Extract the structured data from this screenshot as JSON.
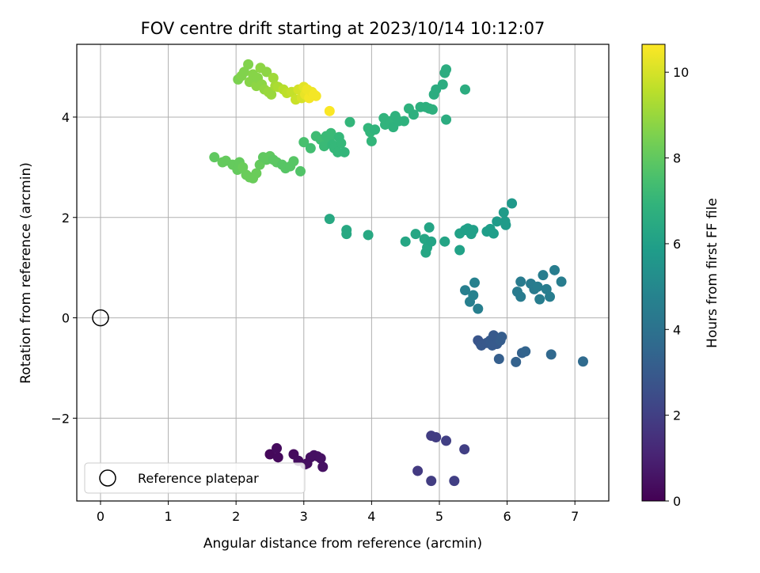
{
  "chart_data": {
    "type": "scatter",
    "title": "FOV centre drift starting at 2023/10/14 10:12:07",
    "xlabel": "Angular distance from reference (arcmin)",
    "ylabel": "Rotation from reference (arcmin)",
    "xlim": [
      -0.35,
      7.5
    ],
    "ylim": [
      -3.65,
      5.45
    ],
    "xticks": [
      0,
      1,
      2,
      3,
      4,
      5,
      6,
      7
    ],
    "yticks": [
      -2,
      0,
      2,
      4
    ],
    "xtick_labels": [
      "0",
      "1",
      "2",
      "3",
      "4",
      "5",
      "6",
      "7"
    ],
    "ytick_labels": [
      "−2",
      "0",
      "2",
      "4"
    ],
    "grid": true,
    "colormap": "viridis",
    "colorbar": {
      "label": "Hours from first FF file",
      "range": [
        0,
        10.65
      ],
      "ticks": [
        0,
        2,
        4,
        6,
        8,
        10
      ],
      "tick_labels": [
        "0",
        "2",
        "4",
        "6",
        "8",
        "10"
      ]
    },
    "legend": {
      "placement": "lower-left",
      "entries": [
        "Reference platepar"
      ]
    },
    "reference_point": {
      "x": 0,
      "y": 0
    },
    "points": [
      [
        2.5,
        -2.72,
        0.2
      ],
      [
        2.6,
        -2.6,
        0.3
      ],
      [
        2.62,
        -2.78,
        0.25
      ],
      [
        2.85,
        -2.72,
        0.3
      ],
      [
        2.92,
        -2.85,
        0.35
      ],
      [
        3.02,
        -2.92,
        0.4
      ],
      [
        3.1,
        -2.78,
        0.4
      ],
      [
        3.15,
        -2.74,
        0.45
      ],
      [
        3.2,
        -2.76,
        0.45
      ],
      [
        3.25,
        -2.8,
        0.5
      ],
      [
        3.28,
        -2.97,
        0.5
      ],
      [
        3.05,
        -2.9,
        0.4
      ],
      [
        4.68,
        -3.05,
        1.8
      ],
      [
        4.88,
        -2.35,
        1.9
      ],
      [
        4.95,
        -2.38,
        1.9
      ],
      [
        4.88,
        -3.25,
        1.9
      ],
      [
        5.1,
        -2.45,
        2.0
      ],
      [
        5.22,
        -3.25,
        2.0
      ],
      [
        5.37,
        -2.62,
        2.0
      ],
      [
        5.57,
        -0.45,
        2.8
      ],
      [
        5.6,
        -0.5,
        2.8
      ],
      [
        5.62,
        -0.55,
        2.9
      ],
      [
        5.7,
        -0.5,
        2.9
      ],
      [
        5.75,
        -0.45,
        3.0
      ],
      [
        5.78,
        -0.55,
        3.0
      ],
      [
        5.8,
        -0.35,
        3.0
      ],
      [
        5.85,
        -0.52,
        3.0
      ],
      [
        5.9,
        -0.45,
        3.1
      ],
      [
        5.92,
        -0.38,
        3.1
      ],
      [
        5.88,
        -0.82,
        3.2
      ],
      [
        6.13,
        -0.88,
        3.3
      ],
      [
        6.22,
        -0.7,
        3.3
      ],
      [
        6.27,
        -0.67,
        3.4
      ],
      [
        6.65,
        -0.73,
        3.6
      ],
      [
        7.12,
        -0.87,
        3.7
      ],
      [
        5.38,
        0.55,
        4.6
      ],
      [
        5.45,
        0.32,
        4.6
      ],
      [
        5.5,
        0.45,
        4.7
      ],
      [
        5.52,
        0.7,
        4.7
      ],
      [
        5.57,
        0.18,
        4.6
      ],
      [
        6.15,
        0.52,
        4.4
      ],
      [
        6.2,
        0.72,
        4.4
      ],
      [
        6.2,
        0.42,
        4.4
      ],
      [
        6.35,
        0.68,
        4.4
      ],
      [
        6.4,
        0.57,
        4.4
      ],
      [
        6.45,
        0.62,
        4.5
      ],
      [
        6.48,
        0.37,
        4.5
      ],
      [
        6.53,
        0.85,
        4.5
      ],
      [
        6.58,
        0.57,
        4.5
      ],
      [
        6.63,
        0.42,
        4.5
      ],
      [
        6.7,
        0.95,
        4.5
      ],
      [
        6.8,
        0.72,
        4.5
      ],
      [
        3.38,
        1.97,
        6.4
      ],
      [
        3.63,
        1.75,
        6.4
      ],
      [
        3.63,
        1.67,
        6.4
      ],
      [
        3.95,
        1.65,
        6.4
      ],
      [
        4.5,
        1.52,
        6.3
      ],
      [
        4.65,
        1.67,
        6.3
      ],
      [
        4.78,
        1.57,
        6.3
      ],
      [
        4.82,
        1.4,
        6.3
      ],
      [
        4.8,
        1.3,
        6.3
      ],
      [
        4.85,
        1.8,
        6.2
      ],
      [
        4.88,
        1.52,
        6.2
      ],
      [
        5.08,
        1.52,
        6.2
      ],
      [
        5.3,
        1.35,
        6.1
      ],
      [
        5.3,
        1.68,
        6.1
      ],
      [
        5.38,
        1.75,
        6.0
      ],
      [
        5.42,
        1.78,
        6.0
      ],
      [
        5.47,
        1.67,
        6.0
      ],
      [
        5.5,
        1.75,
        6.0
      ],
      [
        5.7,
        1.72,
        5.9
      ],
      [
        5.75,
        1.77,
        5.9
      ],
      [
        5.8,
        1.68,
        5.9
      ],
      [
        5.85,
        1.92,
        5.8
      ],
      [
        5.95,
        2.1,
        5.8
      ],
      [
        5.97,
        1.92,
        5.8
      ],
      [
        5.98,
        1.85,
        5.8
      ],
      [
        6.07,
        2.28,
        5.7
      ],
      [
        1.68,
        3.2,
        8.0
      ],
      [
        1.8,
        3.1,
        8.1
      ],
      [
        1.85,
        3.13,
        8.1
      ],
      [
        1.95,
        3.05,
        8.1
      ],
      [
        2.02,
        2.95,
        8.1
      ],
      [
        2.05,
        3.1,
        8.1
      ],
      [
        2.1,
        3.0,
        8.2
      ],
      [
        2.15,
        2.85,
        8.2
      ],
      [
        2.2,
        2.8,
        8.2
      ],
      [
        2.25,
        2.78,
        8.2
      ],
      [
        2.3,
        2.88,
        8.2
      ],
      [
        2.35,
        3.05,
        8.1
      ],
      [
        2.4,
        3.2,
        8.0
      ],
      [
        2.45,
        3.15,
        8.0
      ],
      [
        2.5,
        3.22,
        8.0
      ],
      [
        2.55,
        3.15,
        7.9
      ],
      [
        2.6,
        3.1,
        7.9
      ],
      [
        2.68,
        3.05,
        7.8
      ],
      [
        2.73,
        2.98,
        7.8
      ],
      [
        2.8,
        3.02,
        7.8
      ],
      [
        2.85,
        3.12,
        7.8
      ],
      [
        2.95,
        2.92,
        7.7
      ],
      [
        3.0,
        3.5,
        7.5
      ],
      [
        3.1,
        3.38,
        7.4
      ],
      [
        3.18,
        3.62,
        7.3
      ],
      [
        3.25,
        3.55,
        7.3
      ],
      [
        3.3,
        3.42,
        7.2
      ],
      [
        3.33,
        3.62,
        7.2
      ],
      [
        3.38,
        3.55,
        7.2
      ],
      [
        3.4,
        3.68,
        7.2
      ],
      [
        3.42,
        3.45,
        7.1
      ],
      [
        3.45,
        3.38,
        7.1
      ],
      [
        3.5,
        3.3,
        7.1
      ],
      [
        3.52,
        3.6,
        7.1
      ],
      [
        3.55,
        3.48,
        7.1
      ],
      [
        3.6,
        3.3,
        7.0
      ],
      [
        3.68,
        3.9,
        7.0
      ],
      [
        3.95,
        3.78,
        7.0
      ],
      [
        3.98,
        3.7,
        7.0
      ],
      [
        4.0,
        3.52,
        7.0
      ],
      [
        4.05,
        3.75,
        6.9
      ],
      [
        4.18,
        3.98,
        6.9
      ],
      [
        4.2,
        3.85,
        6.9
      ],
      [
        4.28,
        3.92,
        6.9
      ],
      [
        4.32,
        3.8,
        6.8
      ],
      [
        4.35,
        4.02,
        6.8
      ],
      [
        4.4,
        3.92,
        6.8
      ],
      [
        4.48,
        3.92,
        6.8
      ],
      [
        4.55,
        4.17,
        6.8
      ],
      [
        4.62,
        4.05,
        6.7
      ],
      [
        4.72,
        4.2,
        6.7
      ],
      [
        4.8,
        4.2,
        6.7
      ],
      [
        4.85,
        4.17,
        6.7
      ],
      [
        4.9,
        4.15,
        6.7
      ],
      [
        4.92,
        4.45,
        6.6
      ],
      [
        4.95,
        4.55,
        6.6
      ],
      [
        5.05,
        4.65,
        6.6
      ],
      [
        5.08,
        4.88,
        6.6
      ],
      [
        5.1,
        4.95,
        6.6
      ],
      [
        5.1,
        3.95,
        6.6
      ],
      [
        5.38,
        4.55,
        6.6
      ],
      [
        2.03,
        4.75,
        8.5
      ],
      [
        2.08,
        4.82,
        8.6
      ],
      [
        2.12,
        4.9,
        8.6
      ],
      [
        2.18,
        5.05,
        8.6
      ],
      [
        2.2,
        4.7,
        8.7
      ],
      [
        2.25,
        4.85,
        8.7
      ],
      [
        2.3,
        4.62,
        8.8
      ],
      [
        2.32,
        4.78,
        8.7
      ],
      [
        2.36,
        4.98,
        8.8
      ],
      [
        2.38,
        4.65,
        8.8
      ],
      [
        2.42,
        4.55,
        8.9
      ],
      [
        2.45,
        4.9,
        8.8
      ],
      [
        2.48,
        4.5,
        9.0
      ],
      [
        2.52,
        4.45,
        9.0
      ],
      [
        2.55,
        4.78,
        9.1
      ],
      [
        2.58,
        4.62,
        9.2
      ],
      [
        2.62,
        4.6,
        9.3
      ],
      [
        2.7,
        4.55,
        9.5
      ],
      [
        2.75,
        4.48,
        9.6
      ],
      [
        2.82,
        4.5,
        9.7
      ],
      [
        2.88,
        4.35,
        9.8
      ],
      [
        2.92,
        4.55,
        10.0
      ],
      [
        2.97,
        4.38,
        10.0
      ],
      [
        3.0,
        4.6,
        10.2
      ],
      [
        3.02,
        4.45,
        10.3
      ],
      [
        3.05,
        4.55,
        10.4
      ],
      [
        3.08,
        4.38,
        10.5
      ],
      [
        3.12,
        4.5,
        10.4
      ],
      [
        3.15,
        4.45,
        10.5
      ],
      [
        3.18,
        4.42,
        10.5
      ],
      [
        3.38,
        4.12,
        10.6
      ]
    ]
  }
}
